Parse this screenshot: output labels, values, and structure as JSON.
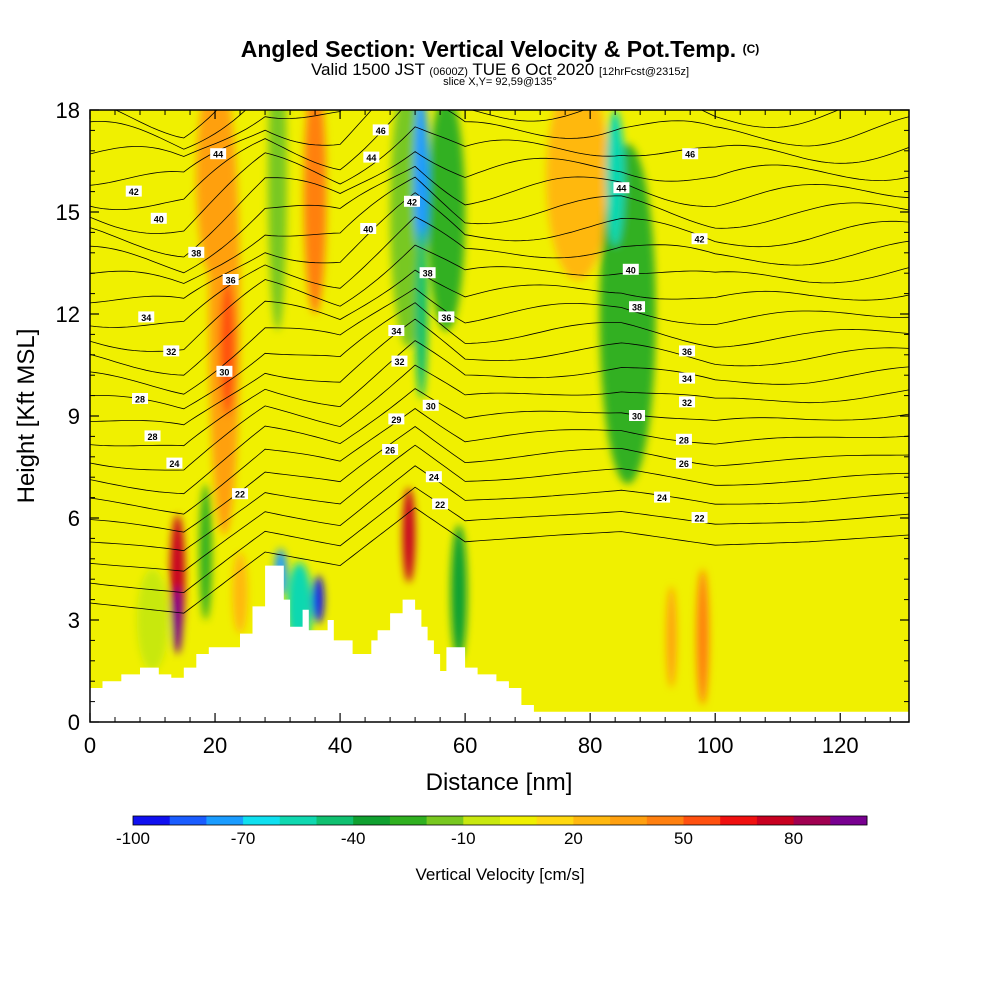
{
  "header": {
    "title": "Angled Section: Vertical Velocity & Pot.Temp.",
    "title_tag": "(C)",
    "subtitle_main": "Valid 1500 JST",
    "subtitle_z": "(0600Z)",
    "subtitle_date": "TUE 6 Oct 2020",
    "subtitle_fcst": "[12hrFcst@2315z]",
    "slice": "slice X,Y= 92,59@135°"
  },
  "chart_data": {
    "type": "heatmap",
    "xlabel": "Distance [nm]",
    "ylabel": "Height [Kft MSL]",
    "xlim": [
      0,
      131
    ],
    "ylim": [
      0,
      18
    ],
    "x_ticks": [
      "0",
      "20",
      "40",
      "60",
      "80",
      "100",
      "120"
    ],
    "x_tick_values": [
      0,
      20,
      40,
      60,
      80,
      100,
      120
    ],
    "y_ticks": [
      "0",
      "3",
      "6",
      "9",
      "12",
      "15",
      "18"
    ],
    "y_tick_values": [
      0,
      3,
      6,
      9,
      12,
      15,
      18
    ],
    "colorbar": {
      "title": "Vertical Velocity [cm/s]",
      "min": -100,
      "step": 10,
      "colors": [
        "#1010f0",
        "#1a5cff",
        "#1a9cff",
        "#10e0f0",
        "#10d8b0",
        "#10c070",
        "#10a030",
        "#30b020",
        "#78c820",
        "#c8e810",
        "#f0f000",
        "#ffd810",
        "#ffb810",
        "#ffa010",
        "#ff8010",
        "#ff5010",
        "#f01010",
        "#c80020",
        "#a00050",
        "#780090"
      ],
      "ticks": [
        "-100",
        "-70",
        "-40",
        "-10",
        "20",
        "50",
        "80"
      ],
      "tick_values": [
        -100,
        -70,
        -40,
        -10,
        20,
        50,
        80
      ]
    },
    "terrain": [
      [
        0,
        1.0
      ],
      [
        2,
        1.0
      ],
      [
        2,
        1.2
      ],
      [
        5,
        1.2
      ],
      [
        5,
        1.4
      ],
      [
        8,
        1.4
      ],
      [
        8,
        1.6
      ],
      [
        11,
        1.6
      ],
      [
        11,
        1.4
      ],
      [
        13,
        1.4
      ],
      [
        13,
        1.3
      ],
      [
        15,
        1.3
      ],
      [
        15,
        1.6
      ],
      [
        17,
        1.6
      ],
      [
        17,
        2.0
      ],
      [
        19,
        2.0
      ],
      [
        19,
        2.2
      ],
      [
        24,
        2.2
      ],
      [
        24,
        2.6
      ],
      [
        26,
        2.6
      ],
      [
        26,
        3.4
      ],
      [
        28,
        3.4
      ],
      [
        28,
        4.6
      ],
      [
        31,
        4.6
      ],
      [
        31,
        3.6
      ],
      [
        32,
        3.6
      ],
      [
        32,
        2.8
      ],
      [
        34,
        2.8
      ],
      [
        34,
        3.3
      ],
      [
        35,
        3.3
      ],
      [
        35,
        2.7
      ],
      [
        38,
        2.7
      ],
      [
        38,
        3.0
      ],
      [
        39,
        3.0
      ],
      [
        39,
        2.4
      ],
      [
        42,
        2.4
      ],
      [
        42,
        2.0
      ],
      [
        45,
        2.0
      ],
      [
        45,
        2.4
      ],
      [
        46,
        2.4
      ],
      [
        46,
        2.7
      ],
      [
        48,
        2.7
      ],
      [
        48,
        3.2
      ],
      [
        50,
        3.2
      ],
      [
        50,
        3.6
      ],
      [
        52,
        3.6
      ],
      [
        52,
        3.3
      ],
      [
        53,
        3.3
      ],
      [
        53,
        2.8
      ],
      [
        54,
        2.8
      ],
      [
        54,
        2.4
      ],
      [
        55,
        2.4
      ],
      [
        55,
        2.0
      ],
      [
        56,
        2.0
      ],
      [
        56,
        1.5
      ],
      [
        57,
        1.5
      ],
      [
        57,
        2.2
      ],
      [
        60,
        2.2
      ],
      [
        60,
        1.6
      ],
      [
        62,
        1.6
      ],
      [
        62,
        1.4
      ],
      [
        65,
        1.4
      ],
      [
        65,
        1.2
      ],
      [
        67,
        1.2
      ],
      [
        67,
        1.0
      ],
      [
        69,
        1.0
      ],
      [
        69,
        0.5
      ],
      [
        71,
        0.5
      ],
      [
        71,
        0.3
      ],
      [
        131,
        0.3
      ]
    ],
    "features": [
      {
        "x": 14,
        "y": 4.2,
        "half_width": 1.2,
        "half_height": 1.9,
        "value": 75
      },
      {
        "x": 14,
        "y": 3.0,
        "half_width": 0.8,
        "half_height": 1.0,
        "value": 90
      },
      {
        "x": 51,
        "y": 5.5,
        "half_width": 1.0,
        "half_height": 1.4,
        "value": 75
      },
      {
        "x": 21.5,
        "y": 12.0,
        "half_width": 2.5,
        "half_height": 6.5,
        "value": 35
      },
      {
        "x": 22,
        "y": 11.0,
        "half_width": 1.2,
        "half_height": 2.0,
        "value": 55
      },
      {
        "x": 36,
        "y": 15.5,
        "half_width": 1.8,
        "half_height": 3.5,
        "value": 40
      },
      {
        "x": 78,
        "y": 16.0,
        "half_width": 5.0,
        "half_height": 3.0,
        "value": 25
      },
      {
        "x": 20,
        "y": 16.0,
        "half_width": 3.0,
        "half_height": 3.0,
        "value": 30
      },
      {
        "x": 51,
        "y": 15.0,
        "half_width": 3.0,
        "half_height": 4.0,
        "value": -20
      },
      {
        "x": 57,
        "y": 15.0,
        "half_width": 3.0,
        "half_height": 3.5,
        "value": -30
      },
      {
        "x": 53,
        "y": 16.0,
        "half_width": 1.2,
        "half_height": 2.5,
        "value": -75
      },
      {
        "x": 53,
        "y": 12.0,
        "half_width": 1.0,
        "half_height": 2.5,
        "value": -45
      },
      {
        "x": 86,
        "y": 12.0,
        "half_width": 4.5,
        "half_height": 5.0,
        "value": -25
      },
      {
        "x": 84,
        "y": 16.0,
        "half_width": 1.5,
        "half_height": 2.0,
        "value": -55
      },
      {
        "x": 30,
        "y": 16.0,
        "half_width": 1.5,
        "half_height": 4.5,
        "value": -20
      },
      {
        "x": 33.5,
        "y": 3.4,
        "half_width": 2.0,
        "half_height": 1.3,
        "value": -55
      },
      {
        "x": 36.5,
        "y": 3.6,
        "half_width": 0.9,
        "half_height": 0.7,
        "value": -95
      },
      {
        "x": 30.5,
        "y": 4.4,
        "half_width": 1.0,
        "half_height": 0.7,
        "value": -75
      },
      {
        "x": 59,
        "y": 3.8,
        "half_width": 1.3,
        "half_height": 2.0,
        "value": -40
      },
      {
        "x": 18.5,
        "y": 5.0,
        "half_width": 1.0,
        "half_height": 2.0,
        "value": -30
      },
      {
        "x": 10,
        "y": 3.0,
        "half_width": 2.5,
        "half_height": 1.5,
        "value": -10
      },
      {
        "x": 98,
        "y": 2.5,
        "half_width": 1.0,
        "half_height": 2.0,
        "value": 40
      },
      {
        "x": 93,
        "y": 2.5,
        "half_width": 0.8,
        "half_height": 1.5,
        "value": 30
      },
      {
        "x": 24,
        "y": 3.8,
        "half_width": 1.2,
        "half_height": 1.2,
        "value": 25
      },
      {
        "x": 100,
        "y": 12.0,
        "half_width": 8.0,
        "half_height": 6.0,
        "value": 5
      },
      {
        "x": 115,
        "y": 8.0,
        "half_width": 10.0,
        "half_height": 8.0,
        "value": 2
      }
    ],
    "theta_contours": {
      "min": 22,
      "max": 46,
      "step": 1,
      "base_height": [
        [
          0,
          3.5
        ],
        [
          15,
          3.2
        ],
        [
          28,
          5.0
        ],
        [
          40,
          4.6
        ],
        [
          52,
          6.3
        ],
        [
          60,
          5.3
        ],
        [
          75,
          5.5
        ],
        [
          85,
          5.6
        ],
        [
          100,
          5.2
        ],
        [
          115,
          5.3
        ],
        [
          131,
          5.5
        ]
      ],
      "kft_per_degree": 0.6
    },
    "theta_labels": [
      {
        "text": "42",
        "x": 7,
        "y": 15.6
      },
      {
        "text": "40",
        "x": 11,
        "y": 14.8
      },
      {
        "text": "38",
        "x": 17,
        "y": 13.8
      },
      {
        "text": "36",
        "x": 22.5,
        "y": 13.0
      },
      {
        "text": "34",
        "x": 9,
        "y": 11.9
      },
      {
        "text": "32",
        "x": 13,
        "y": 10.9
      },
      {
        "text": "30",
        "x": 21.5,
        "y": 10.3
      },
      {
        "text": "28",
        "x": 8,
        "y": 9.5
      },
      {
        "text": "28",
        "x": 10,
        "y": 8.4
      },
      {
        "text": "24",
        "x": 13.5,
        "y": 7.6
      },
      {
        "text": "22",
        "x": 24,
        "y": 6.7
      },
      {
        "text": "44",
        "x": 20.5,
        "y": 16.7
      },
      {
        "text": "46",
        "x": 46.5,
        "y": 17.4
      },
      {
        "text": "44",
        "x": 45,
        "y": 16.6
      },
      {
        "text": "42",
        "x": 51.5,
        "y": 15.3
      },
      {
        "text": "40",
        "x": 44.5,
        "y": 14.5
      },
      {
        "text": "38",
        "x": 54,
        "y": 13.2
      },
      {
        "text": "36",
        "x": 57,
        "y": 11.9
      },
      {
        "text": "34",
        "x": 49,
        "y": 11.5
      },
      {
        "text": "32",
        "x": 49.5,
        "y": 10.6
      },
      {
        "text": "30",
        "x": 54.5,
        "y": 9.3
      },
      {
        "text": "29",
        "x": 49,
        "y": 8.9
      },
      {
        "text": "26",
        "x": 48,
        "y": 8.0
      },
      {
        "text": "24",
        "x": 55,
        "y": 7.2
      },
      {
        "text": "22",
        "x": 56,
        "y": 6.4
      },
      {
        "text": "46",
        "x": 96,
        "y": 16.7
      },
      {
        "text": "44",
        "x": 85,
        "y": 15.7
      },
      {
        "text": "42",
        "x": 97.5,
        "y": 14.2
      },
      {
        "text": "40",
        "x": 86.5,
        "y": 13.3
      },
      {
        "text": "38",
        "x": 87.5,
        "y": 12.2
      },
      {
        "text": "36",
        "x": 95.5,
        "y": 10.9
      },
      {
        "text": "34",
        "x": 95.5,
        "y": 10.1
      },
      {
        "text": "32",
        "x": 95.5,
        "y": 9.4
      },
      {
        "text": "30",
        "x": 87.5,
        "y": 9.0
      },
      {
        "text": "28",
        "x": 95,
        "y": 8.3
      },
      {
        "text": "26",
        "x": 95,
        "y": 7.6
      },
      {
        "text": "24",
        "x": 91.5,
        "y": 6.6
      },
      {
        "text": "22",
        "x": 97.5,
        "y": 6.0
      }
    ]
  }
}
